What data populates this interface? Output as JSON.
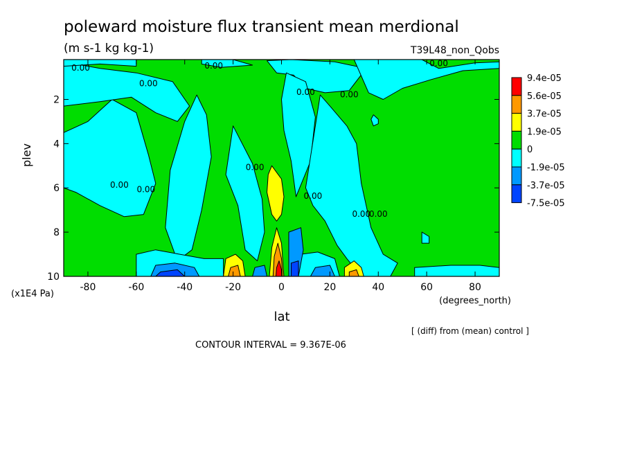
{
  "chart_data": {
    "type": "heatmap",
    "title": "poleward moisture flux transient mean merdional",
    "subtitle": "(m s-1 kg kg-1)",
    "run_label": "T39L48_non_Qobs",
    "xlabel": "lat",
    "x_units": "(degrees_north)",
    "ylabel": "plev",
    "y_units": "(x1E4 Pa)",
    "xlim": [
      -90,
      90
    ],
    "ylim": [
      10,
      0.2
    ],
    "x_ticks": [
      -80,
      -60,
      -40,
      -20,
      0,
      20,
      40,
      60,
      80
    ],
    "x_tick_labels": [
      "-80",
      "-60",
      "-40",
      "-20",
      "0",
      "20",
      "40",
      "60",
      "80"
    ],
    "y_ticks": [
      2,
      4,
      6,
      8,
      10
    ],
    "y_tick_labels": [
      "2",
      "4",
      "6",
      "8",
      "10"
    ],
    "contour_interval": "CONTOUR INTERVAL = 9.367E-06",
    "comparison_note": "[ (diff) from (mean) control ]",
    "contour_label": "0.00",
    "contour_labels": [
      {
        "text": "0.00",
        "lat": -83,
        "plev": 0.7
      },
      {
        "text": "0.00",
        "lat": -28,
        "plev": 0.6
      },
      {
        "text": "0.00",
        "lat": 65,
        "plev": 0.5
      },
      {
        "text": "0.00",
        "lat": -55,
        "plev": 1.4
      },
      {
        "text": "0.00",
        "lat": 10,
        "plev": 1.8
      },
      {
        "text": "0.00",
        "lat": 28,
        "plev": 1.9
      },
      {
        "text": "0.00",
        "lat": -67,
        "plev": 6.0
      },
      {
        "text": "0.00",
        "lat": -56,
        "plev": 6.2
      },
      {
        "text": "0.00",
        "lat": -11,
        "plev": 5.2
      },
      {
        "text": "0.00",
        "lat": 13,
        "plev": 6.5
      },
      {
        "text": "0.00",
        "lat": 33,
        "plev": 7.3
      },
      {
        "text": "0.00",
        "lat": 40,
        "plev": 7.3
      }
    ],
    "legend": {
      "placement": "right",
      "labels": [
        "9.4e-05",
        "5.6e-05",
        "3.7e-05",
        "1.9e-05",
        "0",
        "-1.9e-05",
        "-3.7e-05",
        "-7.5e-05"
      ],
      "colors": [
        "#ff0000",
        "#ff9900",
        "#ffff00",
        "#00dd00",
        "#00ffff",
        "#0099ff",
        "#0044ff"
      ]
    },
    "colors": {
      "positive_small": "#00dd00",
      "negative_small": "#00ffff",
      "positive_mid": "#ffff00",
      "positive_high": "#ff9900",
      "positive_max": "#ff0000",
      "negative_mid": "#0099ff",
      "negative_high": "#0044ff"
    },
    "regions": [
      {
        "level": "negative_small",
        "points": [
          [
            -90,
            3.5
          ],
          [
            -80,
            3.0
          ],
          [
            -70,
            2.0
          ],
          [
            -60,
            2.6
          ],
          [
            -55,
            4.5
          ],
          [
            -52,
            5.8
          ],
          [
            -57,
            7.2
          ],
          [
            -65,
            7.3
          ],
          [
            -75,
            6.8
          ],
          [
            -85,
            6.2
          ],
          [
            -90,
            6.0
          ]
        ]
      },
      {
        "level": "negative_small",
        "points": [
          [
            -90,
            0.3
          ],
          [
            -75,
            0.6
          ],
          [
            -60,
            0.8
          ],
          [
            -45,
            1.2
          ],
          [
            -38,
            2.3
          ],
          [
            -43,
            3.0
          ],
          [
            -52,
            2.6
          ],
          [
            -62,
            1.9
          ],
          [
            -75,
            2.1
          ],
          [
            -90,
            2.3
          ]
        ]
      },
      {
        "level": "negative_small",
        "points": [
          [
            -90,
            0.2
          ],
          [
            -60,
            0.2
          ],
          [
            -60,
            0.5
          ],
          [
            -75,
            0.4
          ],
          [
            -90,
            0.5
          ]
        ]
      },
      {
        "level": "negative_small",
        "points": [
          [
            -46,
            5.2
          ],
          [
            -40,
            3.0
          ],
          [
            -35,
            1.8
          ],
          [
            -31,
            2.7
          ],
          [
            -29,
            4.6
          ],
          [
            -33,
            7.0
          ],
          [
            -37,
            8.8
          ],
          [
            -43,
            9.3
          ],
          [
            -48,
            7.8
          ]
        ]
      },
      {
        "level": "negative_small",
        "points": [
          [
            -33,
            0.2
          ],
          [
            -20,
            0.2
          ],
          [
            -12,
            0.45
          ],
          [
            -25,
            0.55
          ],
          [
            -33,
            0.4
          ]
        ]
      },
      {
        "level": "negative_small",
        "points": [
          [
            -6,
            0.25
          ],
          [
            4,
            0.2
          ],
          [
            22,
            0.3
          ],
          [
            35,
            0.6
          ],
          [
            28,
            1.6
          ],
          [
            18,
            1.7
          ],
          [
            10,
            1.5
          ],
          [
            5,
            0.9
          ],
          [
            -2,
            0.8
          ]
        ]
      },
      {
        "level": "negative_small",
        "points": [
          [
            -20,
            3.2
          ],
          [
            -12,
            4.9
          ],
          [
            -8,
            6.5
          ],
          [
            -7,
            8.0
          ],
          [
            -10,
            9.3
          ],
          [
            -15,
            8.8
          ],
          [
            -18,
            6.8
          ],
          [
            -23,
            5.4
          ]
        ]
      },
      {
        "level": "negative_small",
        "points": [
          [
            2,
            0.8
          ],
          [
            10,
            1.2
          ],
          [
            14,
            2.8
          ],
          [
            12,
            4.8
          ],
          [
            6,
            6.4
          ],
          [
            4,
            4.8
          ],
          [
            1,
            3.4
          ],
          [
            0,
            2.0
          ]
        ]
      },
      {
        "level": "negative_small",
        "points": [
          [
            16,
            1.8
          ],
          [
            20,
            2.3
          ],
          [
            27,
            3.2
          ],
          [
            31,
            4.0
          ],
          [
            33,
            5.8
          ],
          [
            37,
            7.8
          ],
          [
            42,
            9.0
          ],
          [
            48,
            9.4
          ],
          [
            45,
            10
          ],
          [
            33,
            10
          ],
          [
            27,
            9.2
          ],
          [
            23,
            8.6
          ],
          [
            18,
            7.5
          ],
          [
            13,
            6.8
          ],
          [
            10,
            6.0
          ]
        ]
      },
      {
        "level": "negative_small",
        "points": [
          [
            30,
            0.2
          ],
          [
            58,
            0.2
          ],
          [
            65,
            0.6
          ],
          [
            80,
            0.35
          ],
          [
            90,
            0.3
          ],
          [
            90,
            0.6
          ],
          [
            75,
            0.7
          ],
          [
            62,
            1.1
          ],
          [
            50,
            1.5
          ],
          [
            42,
            2.0
          ],
          [
            36,
            1.7
          ]
        ]
      },
      {
        "level": "negative_small",
        "points": [
          [
            38,
            2.7
          ],
          [
            40,
            2.9
          ],
          [
            40,
            3.1
          ],
          [
            38,
            3.2
          ],
          [
            37,
            2.9
          ]
        ]
      },
      {
        "level": "negative_small",
        "points": [
          [
            58,
            8.0
          ],
          [
            61,
            8.2
          ],
          [
            61,
            8.5
          ],
          [
            58,
            8.5
          ]
        ]
      },
      {
        "level": "negative_small",
        "points": [
          [
            -60,
            9.0
          ],
          [
            -52,
            8.8
          ],
          [
            -42,
            9.0
          ],
          [
            -32,
            9.2
          ],
          [
            -24,
            9.2
          ],
          [
            -24,
            10
          ],
          [
            -60,
            10
          ]
        ]
      },
      {
        "level": "negative_small",
        "points": [
          [
            8,
            9.0
          ],
          [
            15,
            8.9
          ],
          [
            22,
            9.2
          ],
          [
            24,
            10
          ],
          [
            6,
            10
          ]
        ]
      },
      {
        "level": "negative_small",
        "points": [
          [
            55,
            9.6
          ],
          [
            70,
            9.5
          ],
          [
            82,
            9.5
          ],
          [
            90,
            9.6
          ],
          [
            90,
            10
          ],
          [
            55,
            10
          ]
        ]
      },
      {
        "level": "positive_mid",
        "points": [
          [
            -4,
            5.0
          ],
          [
            0,
            5.6
          ],
          [
            1,
            6.4
          ],
          [
            0,
            7.2
          ],
          [
            -2,
            7.5
          ],
          [
            -4,
            7.2
          ],
          [
            -6,
            6.2
          ],
          [
            -5.5,
            5.4
          ]
        ]
      },
      {
        "level": "positive_mid",
        "points": [
          [
            -23,
            9.2
          ],
          [
            -19,
            9.0
          ],
          [
            -16,
            9.3
          ],
          [
            -15,
            10
          ],
          [
            -24,
            10
          ]
        ]
      },
      {
        "level": "positive_mid",
        "points": [
          [
            26,
            9.6
          ],
          [
            30,
            9.3
          ],
          [
            33,
            9.6
          ],
          [
            34,
            10
          ],
          [
            26,
            10
          ]
        ]
      },
      {
        "level": "positive_mid",
        "points": [
          [
            -4,
            8.7
          ],
          [
            -2,
            7.8
          ],
          [
            0,
            8.5
          ],
          [
            1,
            10
          ],
          [
            -5,
            10
          ]
        ]
      },
      {
        "level": "positive_high",
        "points": [
          [
            -21,
            9.6
          ],
          [
            -18,
            9.5
          ],
          [
            -17,
            10
          ],
          [
            -22,
            10
          ]
        ]
      },
      {
        "level": "positive_high",
        "points": [
          [
            -3,
            9.1
          ],
          [
            -1.5,
            8.5
          ],
          [
            0,
            9.2
          ],
          [
            0.5,
            10
          ],
          [
            -3.5,
            10
          ]
        ]
      },
      {
        "level": "positive_high",
        "points": [
          [
            28,
            9.8
          ],
          [
            31,
            9.7
          ],
          [
            32,
            10
          ],
          [
            28,
            10
          ]
        ]
      },
      {
        "level": "positive_max",
        "points": [
          [
            -2,
            9.6
          ],
          [
            -1,
            9.3
          ],
          [
            0,
            9.7
          ],
          [
            0,
            10
          ],
          [
            -2.3,
            10
          ]
        ]
      },
      {
        "level": "negative_mid",
        "points": [
          [
            -52,
            9.5
          ],
          [
            -44,
            9.4
          ],
          [
            -36,
            9.6
          ],
          [
            -34,
            10
          ],
          [
            -54,
            10
          ]
        ]
      },
      {
        "level": "negative_mid",
        "points": [
          [
            3,
            8.0
          ],
          [
            8,
            7.8
          ],
          [
            9,
            8.8
          ],
          [
            7,
            10
          ],
          [
            3,
            10
          ]
        ]
      },
      {
        "level": "negative_mid",
        "points": [
          [
            14,
            9.6
          ],
          [
            20,
            9.5
          ],
          [
            22,
            10
          ],
          [
            12,
            10
          ]
        ]
      },
      {
        "level": "negative_mid",
        "points": [
          [
            -11,
            9.6
          ],
          [
            -7,
            9.5
          ],
          [
            -6,
            10
          ],
          [
            -12,
            10
          ]
        ]
      },
      {
        "level": "negative_high",
        "points": [
          [
            -50,
            9.8
          ],
          [
            -43,
            9.7
          ],
          [
            -40,
            10
          ],
          [
            -52,
            10
          ]
        ]
      },
      {
        "level": "negative_high",
        "points": [
          [
            4,
            9.4
          ],
          [
            7,
            9.3
          ],
          [
            7,
            10
          ],
          [
            4,
            10
          ]
        ]
      }
    ]
  }
}
